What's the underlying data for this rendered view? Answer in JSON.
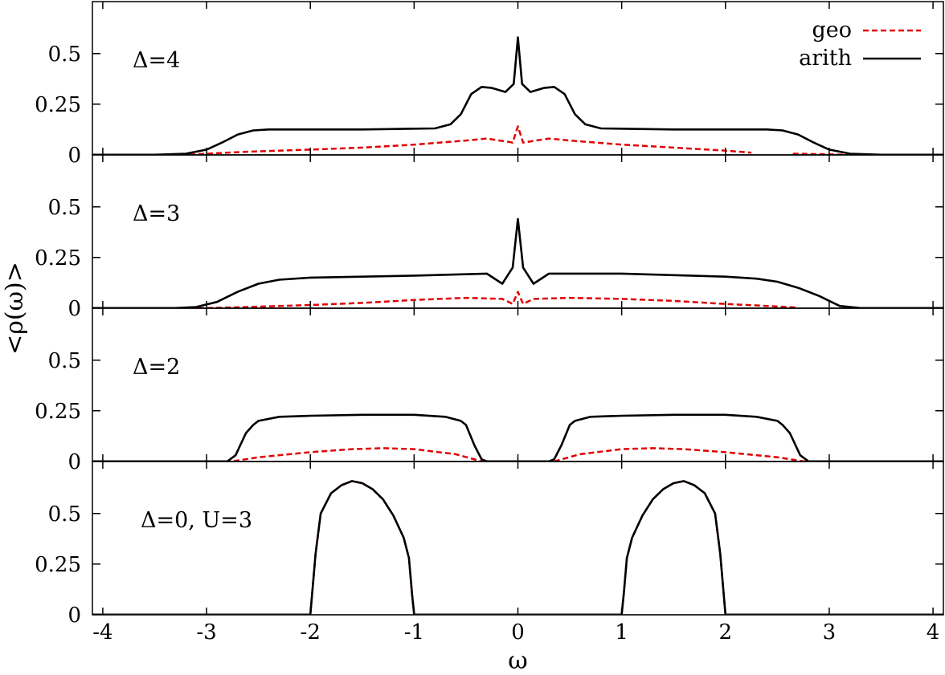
{
  "chart_data": {
    "type": "line",
    "xlabel": "ω",
    "ylabel": "<ρ(ω)>",
    "xlim": [
      -4.1,
      4.1
    ],
    "x_ticks": [
      -4,
      -3,
      -2,
      -1,
      0,
      1,
      2,
      3,
      4
    ],
    "y_ticks": [
      0,
      0.25,
      0.5
    ],
    "y_tick_labels": [
      "0",
      "0.25",
      "0.5"
    ],
    "grid": false,
    "legend_position": "top-right",
    "legend": [
      {
        "label": "geo",
        "color": "#e00000",
        "style": "dashed"
      },
      {
        "label": "arith",
        "color": "#000000",
        "style": "solid"
      }
    ],
    "colors": {
      "arith": "#000000",
      "geo": "#e00000",
      "zero_line": "#888888"
    },
    "panels": [
      {
        "label": "Δ=4",
        "ylim": [
          0,
          0.7
        ],
        "series": [
          {
            "name": "geo",
            "x": [
              -4.1,
              -3.2,
              -3.0,
              -2.6,
              -2.0,
              -1.5,
              -1.0,
              -0.5,
              -0.3,
              -0.05,
              0.0,
              0.05,
              0.3,
              0.5,
              1.0,
              1.5,
              2.0,
              2.25
            ],
            "y": [
              0,
              0,
              0.005,
              0.015,
              0.025,
              0.035,
              0.05,
              0.07,
              0.08,
              0.06,
              0.14,
              0.06,
              0.08,
              0.07,
              0.05,
              0.035,
              0.02,
              0.01
            ]
          },
          {
            "name": "geo",
            "x": [
              2.65,
              2.9,
              3.2,
              4.1
            ],
            "y": [
              0.005,
              0.003,
              0,
              0
            ]
          },
          {
            "name": "arith",
            "x": [
              -4.1,
              -3.5,
              -3.2,
              -3.0,
              -2.85,
              -2.7,
              -2.55,
              -2.4,
              -2.2,
              -1.5,
              -0.8,
              -0.65,
              -0.55,
              -0.45,
              -0.35,
              -0.25,
              -0.12,
              -0.04,
              0.0,
              0.04,
              0.12,
              0.25,
              0.35,
              0.45,
              0.55,
              0.65,
              0.8,
              1.5,
              2.2,
              2.4,
              2.55,
              2.7,
              2.85,
              3.0,
              3.2,
              3.5,
              4.1
            ],
            "y": [
              0,
              0,
              0.005,
              0.025,
              0.06,
              0.1,
              0.12,
              0.125,
              0.125,
              0.125,
              0.13,
              0.15,
              0.2,
              0.3,
              0.335,
              0.33,
              0.31,
              0.35,
              0.58,
              0.35,
              0.31,
              0.33,
              0.335,
              0.3,
              0.2,
              0.15,
              0.13,
              0.125,
              0.125,
              0.125,
              0.12,
              0.1,
              0.06,
              0.025,
              0.005,
              0,
              0
            ]
          }
        ]
      },
      {
        "label": "Δ=3",
        "ylim": [
          0,
          0.7
        ],
        "series": [
          {
            "name": "geo",
            "x": [
              -4.1,
              -3.0,
              -2.6,
              -2.0,
              -1.5,
              -1.0,
              -0.5,
              -0.15,
              -0.05,
              0.0,
              0.05,
              0.15,
              0.5,
              1.0,
              1.5,
              2.0,
              2.4,
              2.7
            ],
            "y": [
              0,
              0,
              0.005,
              0.015,
              0.025,
              0.04,
              0.05,
              0.045,
              0.02,
              0.08,
              0.02,
              0.045,
              0.05,
              0.045,
              0.035,
              0.02,
              0.01,
              0.002
            ]
          },
          {
            "name": "geo",
            "x": [
              3.15,
              4.1
            ],
            "y": [
              0,
              0
            ]
          },
          {
            "name": "arith",
            "x": [
              -4.1,
              -3.3,
              -3.1,
              -2.9,
              -2.7,
              -2.5,
              -2.3,
              -2.0,
              -1.0,
              -0.3,
              -0.15,
              -0.05,
              0.0,
              0.05,
              0.15,
              0.3,
              1.0,
              2.0,
              2.3,
              2.5,
              2.7,
              2.9,
              3.1,
              3.3,
              4.1
            ],
            "y": [
              0,
              0,
              0.005,
              0.03,
              0.08,
              0.12,
              0.14,
              0.15,
              0.16,
              0.17,
              0.12,
              0.2,
              0.44,
              0.2,
              0.12,
              0.17,
              0.17,
              0.155,
              0.145,
              0.13,
              0.1,
              0.06,
              0.01,
              0,
              0
            ]
          }
        ]
      },
      {
        "label": "Δ=2",
        "ylim": [
          0,
          0.7
        ],
        "series": [
          {
            "name": "geo",
            "x": [
              -4.1,
              -2.75,
              -2.5,
              -2.0,
              -1.6,
              -1.3,
              -1.0,
              -0.6,
              -0.35
            ],
            "y": [
              0,
              0,
              0.02,
              0.045,
              0.06,
              0.065,
              0.06,
              0.035,
              0
            ]
          },
          {
            "name": "geo",
            "x": [
              0.35,
              0.6,
              1.0,
              1.3,
              1.6,
              2.0,
              2.5,
              2.75,
              4.1
            ],
            "y": [
              0,
              0.035,
              0.06,
              0.065,
              0.06,
              0.045,
              0.02,
              0,
              0
            ]
          },
          {
            "name": "arith",
            "x": [
              -4.1,
              -2.8,
              -2.72,
              -2.62,
              -2.55,
              -2.5,
              -2.3,
              -2.0,
              -1.5,
              -1.0,
              -0.7,
              -0.55,
              -0.5,
              -0.42,
              -0.35,
              -0.3,
              0.3,
              0.35,
              0.42,
              0.5,
              0.55,
              0.7,
              1.0,
              1.5,
              2.0,
              2.3,
              2.5,
              2.55,
              2.62,
              2.72,
              2.8,
              4.1
            ],
            "y": [
              0,
              0,
              0.03,
              0.14,
              0.18,
              0.2,
              0.22,
              0.225,
              0.23,
              0.23,
              0.22,
              0.2,
              0.18,
              0.08,
              0.01,
              0,
              0,
              0.01,
              0.08,
              0.18,
              0.2,
              0.22,
              0.225,
              0.23,
              0.23,
              0.22,
              0.2,
              0.18,
              0.14,
              0.03,
              0,
              0
            ]
          }
        ]
      },
      {
        "label": "Δ=0, U=3",
        "ylim": [
          0,
          0.7
        ],
        "series": [
          {
            "name": "geo",
            "x": [
              -4.1,
              -2.0,
              -1.95,
              -1.9,
              -1.8,
              -1.7,
              -1.6,
              -1.5,
              -1.4,
              -1.3,
              -1.2,
              -1.1,
              -1.05,
              -1.02,
              -1.0,
              1.0,
              1.02,
              1.05,
              1.1,
              1.2,
              1.3,
              1.4,
              1.5,
              1.6,
              1.7,
              1.8,
              1.9,
              1.95,
              2.0,
              4.1
            ],
            "y": [
              0,
              0,
              0.3,
              0.5,
              0.6,
              0.64,
              0.66,
              0.65,
              0.62,
              0.57,
              0.49,
              0.38,
              0.28,
              0.1,
              0,
              0,
              0.1,
              0.28,
              0.38,
              0.49,
              0.57,
              0.62,
              0.65,
              0.66,
              0.64,
              0.6,
              0.5,
              0.3,
              0,
              0
            ]
          },
          {
            "name": "arith",
            "x": [
              -4.1,
              -2.0,
              -1.95,
              -1.9,
              -1.8,
              -1.7,
              -1.6,
              -1.5,
              -1.4,
              -1.3,
              -1.2,
              -1.1,
              -1.05,
              -1.02,
              -1.0,
              1.0,
              1.02,
              1.05,
              1.1,
              1.2,
              1.3,
              1.4,
              1.5,
              1.6,
              1.7,
              1.8,
              1.9,
              1.95,
              2.0,
              4.1
            ],
            "y": [
              0,
              0,
              0.3,
              0.5,
              0.6,
              0.64,
              0.66,
              0.65,
              0.62,
              0.57,
              0.49,
              0.38,
              0.28,
              0.1,
              0,
              0,
              0.1,
              0.28,
              0.38,
              0.49,
              0.57,
              0.62,
              0.65,
              0.66,
              0.64,
              0.6,
              0.5,
              0.3,
              0,
              0
            ]
          }
        ]
      }
    ]
  }
}
